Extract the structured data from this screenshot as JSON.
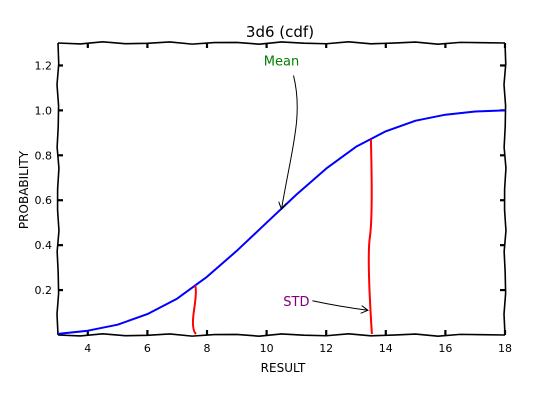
{
  "chart_data": {
    "type": "line",
    "title": "3d6 (cdf)",
    "xlabel": "RESULT",
    "ylabel": "PROBABILITY",
    "xlim": [
      3,
      18
    ],
    "ylim": [
      0,
      1.3
    ],
    "grid": false,
    "x_ticks": [
      4,
      6,
      8,
      10,
      12,
      14,
      16,
      18
    ],
    "y_ticks": [
      0.2,
      0.4,
      0.6,
      0.8,
      1.0,
      1.2
    ],
    "x_tick_labels": [
      "4",
      "6",
      "8",
      "10",
      "12",
      "14",
      "16",
      "18"
    ],
    "y_tick_labels": [
      "0.2",
      "0.4",
      "0.6",
      "0.8",
      "1.0",
      "1.2"
    ],
    "series": [
      {
        "color": "#0000ff",
        "x": [
          3,
          4,
          5,
          6,
          7,
          8,
          9,
          10,
          11,
          12,
          13,
          14,
          15,
          16,
          17,
          18
        ],
        "y": [
          0.005,
          0.019,
          0.046,
          0.093,
          0.162,
          0.259,
          0.375,
          0.5,
          0.625,
          0.741,
          0.838,
          0.907,
          0.954,
          0.981,
          0.995,
          1.0
        ]
      }
    ],
    "std_lines": [
      {
        "x": 7.6,
        "y_top": 0.22,
        "color": "#ff0000"
      },
      {
        "x": 13.5,
        "y_top": 0.87,
        "color": "#ff0000"
      }
    ],
    "annotations": [
      {
        "text": "Mean",
        "color": "#008000",
        "x": 10.5,
        "y": 1.2,
        "target_x": 10.5,
        "target_y": 0.56
      },
      {
        "text": "STD",
        "color": "#800080",
        "x": 11.0,
        "y": 0.13,
        "target_x": 13.4,
        "target_y": 0.11
      }
    ]
  }
}
